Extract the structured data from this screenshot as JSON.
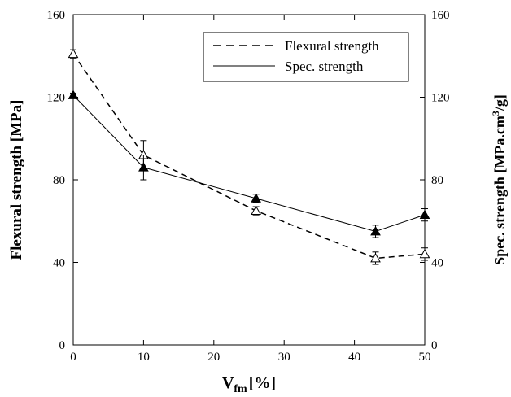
{
  "chart_data": {
    "type": "line",
    "x": [
      0,
      10,
      26,
      43,
      50
    ],
    "xlabel": {
      "main": "V",
      "sub": "fm",
      "rest": "[%]"
    },
    "xlim": [
      0,
      50
    ],
    "xticks": [
      "0",
      "10",
      "20",
      "30",
      "40",
      "50"
    ],
    "ylabel_left": "Flexural strength [MPa]",
    "ylabel_right": {
      "pre": "Spec. strength [MPa.cm",
      "sup": "3",
      "post": "/g]"
    },
    "ylim_left": [
      0,
      160
    ],
    "ylim_right": [
      0,
      160
    ],
    "yticks_left": [
      "0",
      "40",
      "80",
      "120",
      "160"
    ],
    "yticks_right": [
      "0",
      "40",
      "80",
      "120",
      "160"
    ],
    "grid": false,
    "legend_position": "top-right",
    "series": [
      {
        "name": "Flexural strength",
        "axis": "left",
        "line_style": "dashed",
        "marker": "open-triangle",
        "values": [
          141,
          92,
          65,
          42,
          44
        ],
        "error": [
          2,
          7,
          2,
          3,
          3
        ]
      },
      {
        "name": "Spec. strength",
        "axis": "right",
        "line_style": "solid",
        "marker": "filled-triangle",
        "values": [
          121,
          86,
          71,
          55,
          63
        ],
        "error": [
          1,
          6,
          2,
          3,
          3
        ]
      }
    ],
    "colors": {
      "line": "#000000",
      "background": "#ffffff"
    }
  }
}
